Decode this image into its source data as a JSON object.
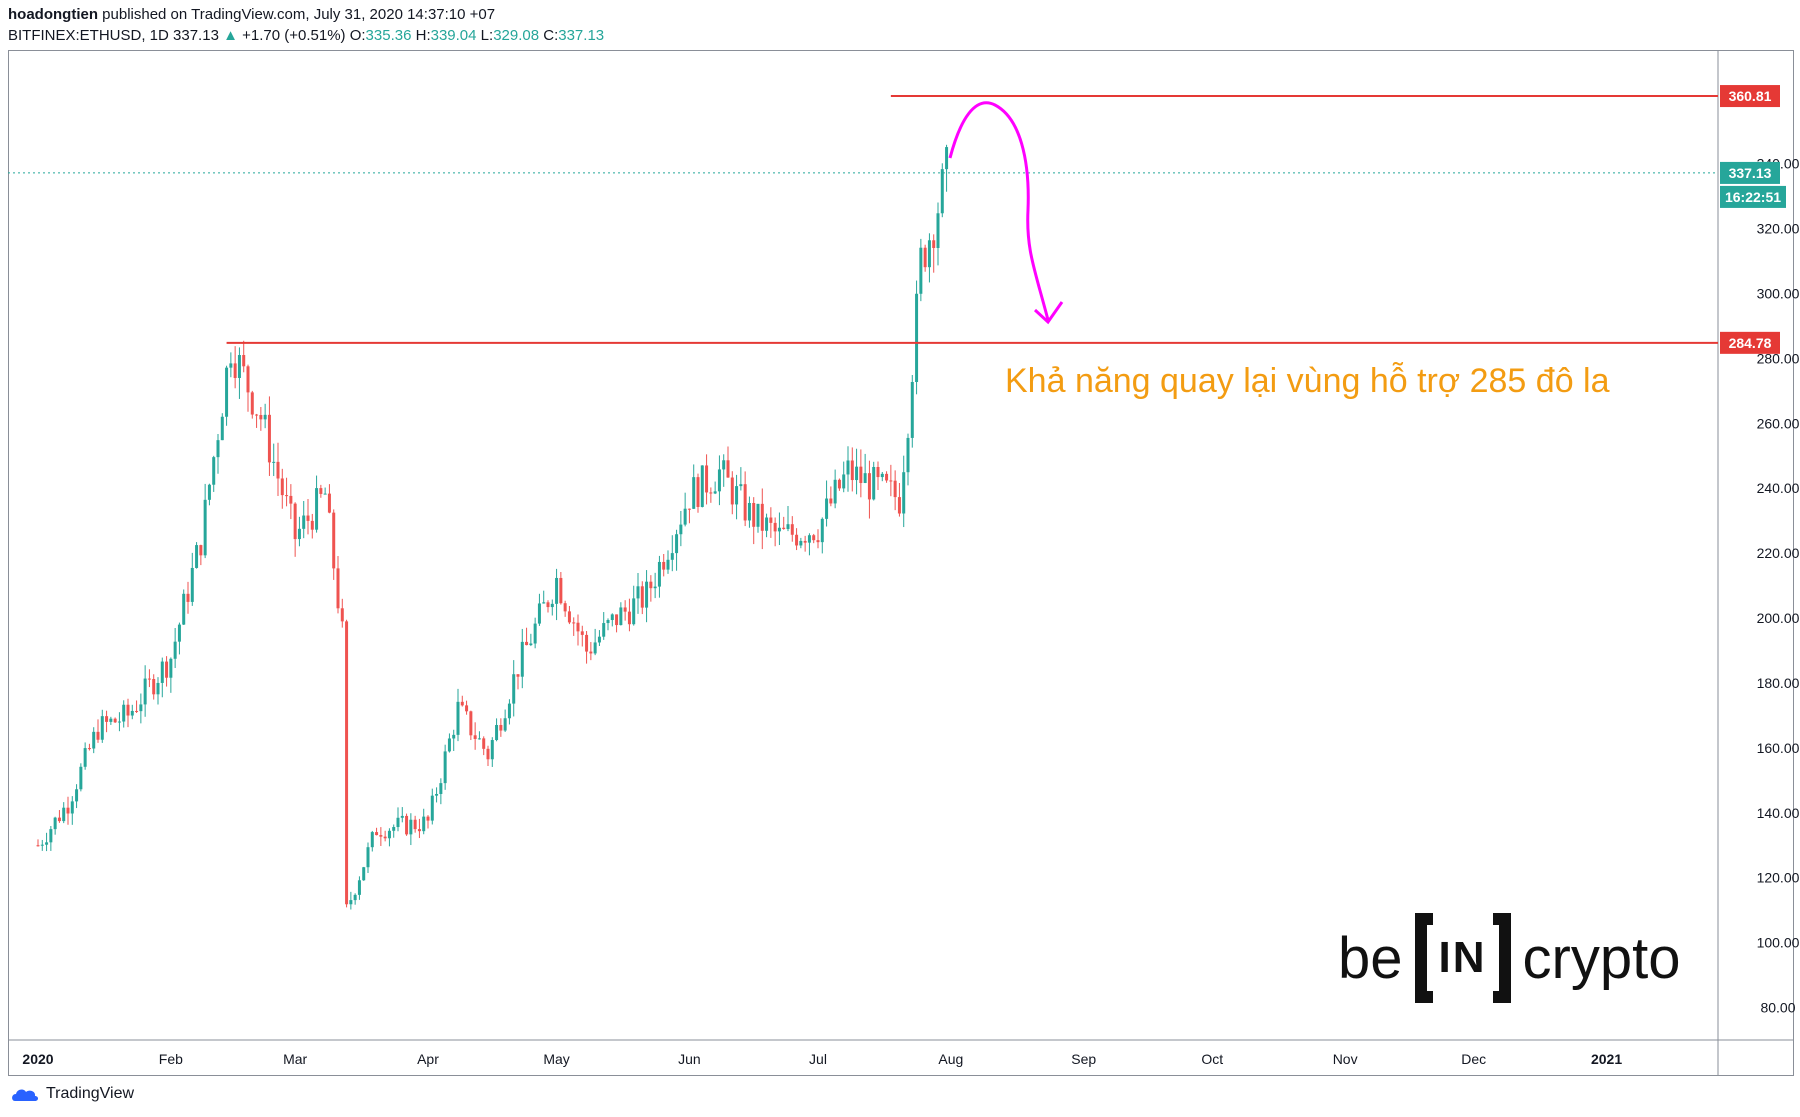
{
  "header": {
    "author": "hoadongtien",
    "published_text": "published on TradingView.com, July 31, 2020 14:37:10 +07",
    "symbol": "BITFINEX:ETHUSD, 1D",
    "last": "337.13",
    "change": "+1.70 (+0.51%)",
    "o_label": "O:",
    "o_value": "335.36",
    "h_label": "H:",
    "h_value": "339.04",
    "l_label": "L:",
    "l_value": "329.08",
    "c_label": "C:",
    "c_value": "337.13"
  },
  "annotation": "Khả năng quay lại vùng hỗ trợ 285 đô la",
  "logo": {
    "left": "be",
    "middle": "IN",
    "right": "crypto"
  },
  "footer": {
    "brand": "TradingView"
  },
  "colors": {
    "up": "#26a69a",
    "down": "#ef5350",
    "level": "#e53935",
    "arrow": "#ff00ff",
    "annotation": "#f39c12"
  },
  "chart_data": {
    "type": "candlestick",
    "ylim": [
      70,
      375
    ],
    "yticks": [
      80,
      100,
      120,
      140,
      160,
      180,
      200,
      220,
      240,
      260,
      280,
      300,
      320,
      340
    ],
    "xticks": [
      "2020",
      "Feb",
      "Mar",
      "Apr",
      "May",
      "Jun",
      "Jul",
      "Aug",
      "Sep",
      "Oct",
      "Nov",
      "Dec",
      "2021"
    ],
    "levels": [
      {
        "label": "360.81",
        "value": 360.81
      },
      {
        "label": "284.78",
        "value": 284.78
      }
    ],
    "current_price": {
      "label": "337.13",
      "value": 337.13,
      "countdown": "16:22:51"
    },
    "close_series_approx": {
      "dates": [
        "2020-01-01",
        "2020-01-08",
        "2020-01-15",
        "2020-01-22",
        "2020-02-01",
        "2020-02-08",
        "2020-02-15",
        "2020-02-22",
        "2020-03-01",
        "2020-03-08",
        "2020-03-12",
        "2020-03-13",
        "2020-03-20",
        "2020-04-01",
        "2020-04-08",
        "2020-04-15",
        "2020-04-22",
        "2020-05-01",
        "2020-05-08",
        "2020-05-15",
        "2020-05-22",
        "2020-06-01",
        "2020-06-08",
        "2020-06-15",
        "2020-06-22",
        "2020-07-01",
        "2020-07-08",
        "2020-07-15",
        "2020-07-20",
        "2020-07-22",
        "2020-07-25",
        "2020-07-28",
        "2020-07-31"
      ],
      "close": [
        130,
        143,
        166,
        170,
        188,
        224,
        284,
        262,
        225,
        238,
        195,
        110,
        135,
        137,
        172,
        158,
        185,
        212,
        190,
        200,
        207,
        238,
        245,
        232,
        225,
        228,
        245,
        240,
        237,
        262,
        310,
        322,
        337.13
      ]
    }
  }
}
